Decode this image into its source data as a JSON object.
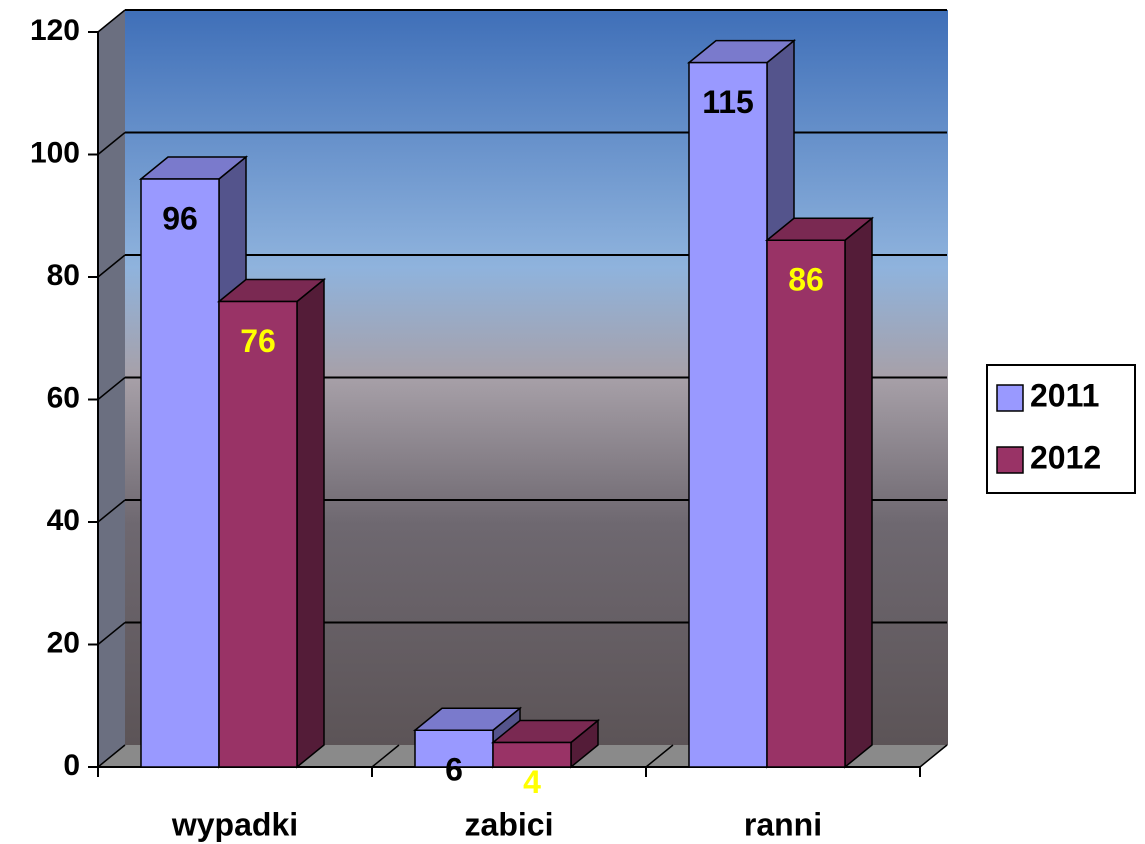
{
  "chart_data": {
    "type": "bar",
    "categories": [
      "wypadki",
      "zabici",
      "ranni"
    ],
    "series": [
      {
        "name": "2011",
        "color": "#9999ff",
        "label_color": "#000000",
        "values": [
          96,
          6,
          115
        ]
      },
      {
        "name": "2012",
        "color": "#993366",
        "label_color": "#ffff00",
        "values": [
          76,
          4,
          86
        ]
      }
    ],
    "ylim": [
      0,
      120
    ],
    "yticks": [
      0,
      20,
      40,
      60,
      80,
      100,
      120
    ],
    "grid": true,
    "legend": "right"
  }
}
